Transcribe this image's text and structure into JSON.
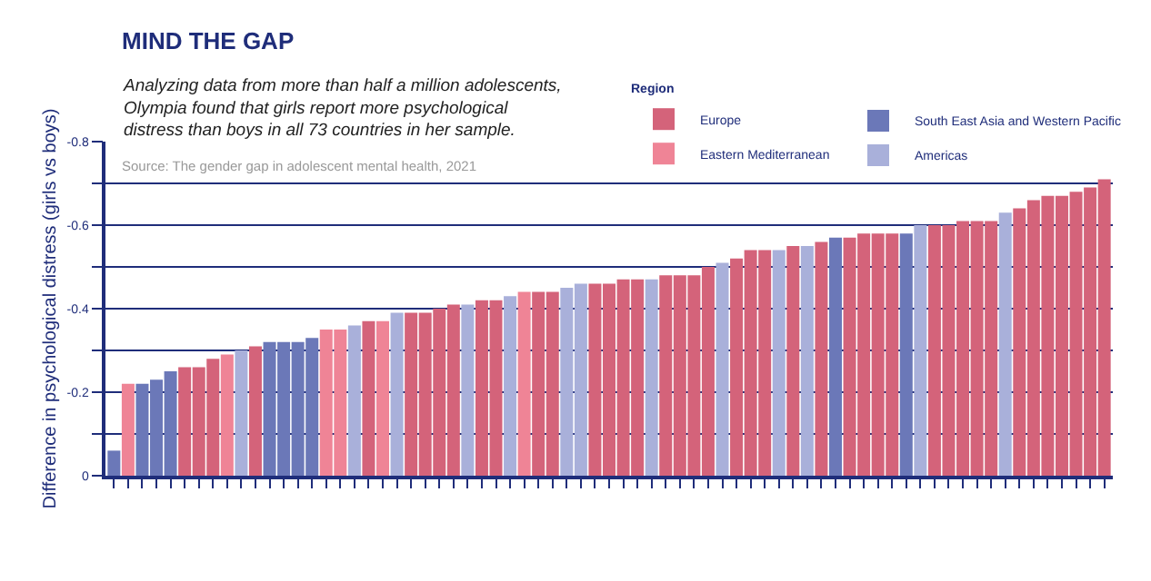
{
  "chart_data": {
    "type": "bar",
    "title": "MIND THE GAP",
    "subtitle": "Analyzing data from more than half a million adolescents, Olympia found that girls report more psychological distress than boys in all 73 countries in her sample.",
    "annotations": [
      "Source: The gender gap in adolescent mental health, 2021"
    ],
    "ylabel": "Difference in psychological distress (girls vs boys)",
    "legend_title": "Region",
    "categories": [
      null,
      null,
      null,
      null,
      null,
      null,
      null,
      null,
      null,
      null,
      null,
      null,
      null,
      null,
      null,
      null,
      null,
      null,
      null,
      null,
      null,
      null,
      null,
      null,
      null,
      null,
      null,
      null,
      null,
      null,
      null,
      null,
      null,
      null,
      null,
      null,
      null,
      null,
      null,
      null,
      null,
      null,
      null,
      null,
      null,
      null,
      null,
      null,
      null,
      null,
      null,
      null,
      null,
      null,
      null,
      null,
      null,
      null,
      null,
      null,
      null,
      null,
      null,
      null,
      null,
      null,
      null,
      null,
      null,
      null,
      null
    ],
    "series": [
      {
        "name": "Europe",
        "color": "#d4637a",
        "values": [
          null,
          null,
          null,
          null,
          null,
          -0.26,
          -0.26,
          -0.28,
          null,
          null,
          -0.31,
          null,
          null,
          null,
          null,
          null,
          null,
          null,
          -0.37,
          null,
          null,
          -0.39,
          -0.39,
          -0.4,
          -0.41,
          null,
          -0.42,
          -0.42,
          null,
          null,
          -0.44,
          -0.44,
          null,
          null,
          -0.46,
          -0.46,
          -0.47,
          -0.47,
          null,
          -0.48,
          -0.48,
          -0.48,
          -0.5,
          null,
          -0.52,
          -0.54,
          -0.54,
          null,
          -0.55,
          null,
          -0.56,
          null,
          -0.57,
          -0.58,
          -0.58,
          -0.58,
          null,
          null,
          -0.6,
          -0.6,
          -0.61,
          -0.61,
          -0.61,
          null,
          -0.64,
          -0.66,
          -0.67,
          -0.67,
          -0.68,
          -0.69,
          -0.71
        ]
      },
      {
        "name": "South East Asia and Western Pacific",
        "color": "#6b78b8",
        "values": [
          -0.06,
          null,
          -0.22,
          -0.23,
          -0.25,
          null,
          null,
          null,
          null,
          null,
          null,
          -0.32,
          -0.32,
          -0.32,
          -0.33,
          null,
          null,
          null,
          null,
          null,
          null,
          null,
          null,
          null,
          null,
          null,
          null,
          null,
          null,
          null,
          null,
          null,
          null,
          null,
          null,
          null,
          null,
          null,
          null,
          null,
          null,
          null,
          null,
          null,
          null,
          null,
          null,
          null,
          null,
          null,
          null,
          -0.57,
          null,
          null,
          null,
          null,
          -0.58,
          null,
          null,
          null,
          null,
          null,
          null,
          null,
          null,
          null,
          null,
          null,
          null,
          null,
          null
        ]
      },
      {
        "name": "Eastern Mediterranean",
        "color": "#ef8496",
        "values": [
          null,
          -0.22,
          null,
          null,
          null,
          null,
          null,
          null,
          -0.29,
          null,
          null,
          null,
          null,
          null,
          null,
          -0.35,
          -0.35,
          null,
          null,
          -0.37,
          null,
          null,
          null,
          null,
          null,
          null,
          null,
          null,
          null,
          -0.44,
          null,
          null,
          null,
          null,
          null,
          null,
          null,
          null,
          null,
          null,
          null,
          null,
          null,
          null,
          null,
          null,
          null,
          null,
          null,
          null,
          null,
          null,
          null,
          null,
          null,
          null,
          null,
          null,
          null,
          null,
          null,
          null,
          null,
          null,
          null,
          null,
          null,
          null,
          null,
          null,
          null
        ]
      },
      {
        "name": "Americas",
        "color": "#a9b0da",
        "values": [
          null,
          null,
          null,
          null,
          null,
          null,
          null,
          null,
          null,
          -0.3,
          null,
          null,
          null,
          null,
          null,
          null,
          null,
          -0.36,
          null,
          null,
          -0.39,
          null,
          null,
          null,
          null,
          -0.41,
          null,
          null,
          -0.43,
          null,
          null,
          null,
          -0.45,
          -0.46,
          null,
          null,
          null,
          null,
          -0.47,
          null,
          null,
          null,
          null,
          -0.51,
          null,
          null,
          null,
          -0.54,
          null,
          -0.55,
          null,
          null,
          null,
          null,
          null,
          null,
          null,
          -0.6,
          null,
          null,
          null,
          null,
          null,
          -0.63,
          null,
          null,
          null,
          null,
          null,
          null,
          null
        ]
      }
    ],
    "ylim": [
      0,
      -0.8
    ],
    "yticks": [
      0,
      {
        "value": -0.1,
        "label": null
      },
      -0.2,
      {
        "value": -0.3,
        "label": null
      },
      -0.4,
      {
        "value": -0.5,
        "label": null
      },
      -0.6,
      {
        "value": -0.7,
        "label": null
      },
      -0.8
    ],
    "grid": "y",
    "legend": "top right"
  }
}
